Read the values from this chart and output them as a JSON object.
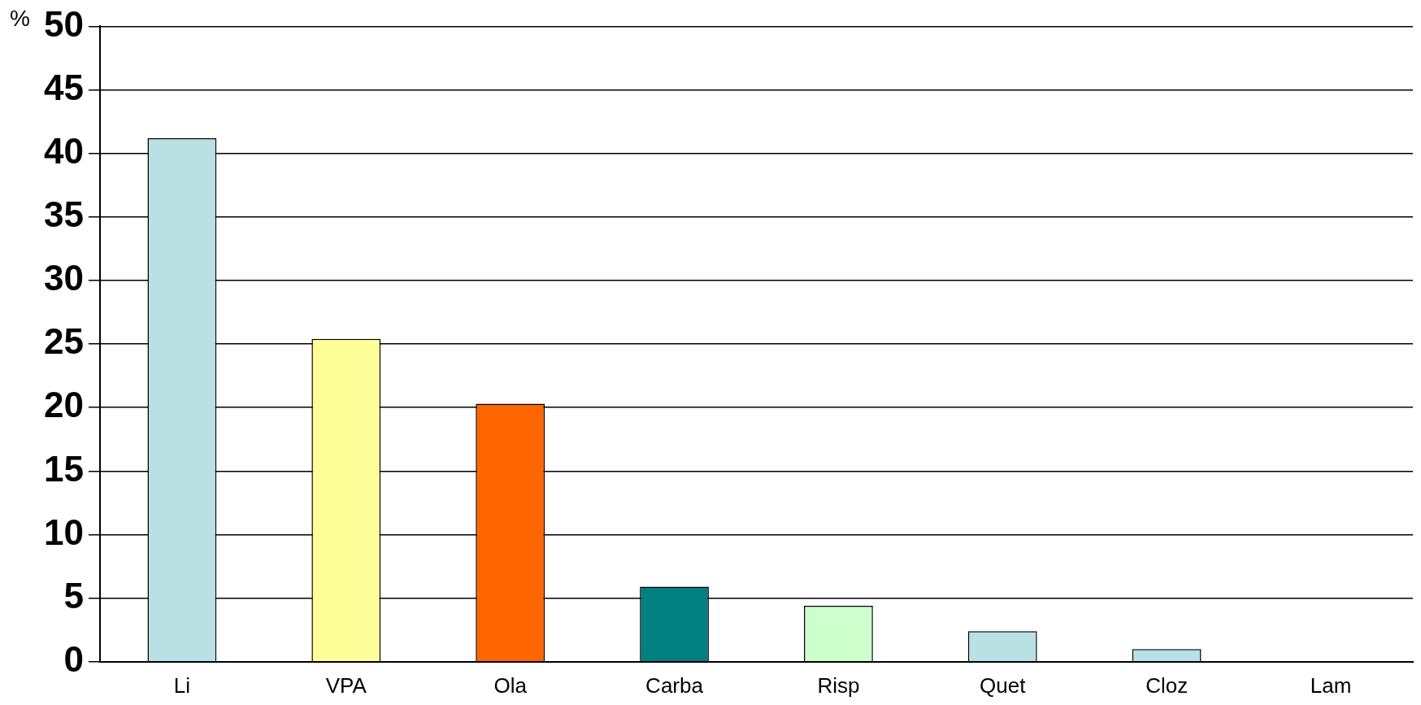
{
  "chart_data": {
    "type": "bar",
    "ylabel": "%",
    "categories": [
      "Li",
      "VPA",
      "Ola",
      "Carba",
      "Risp",
      "Quet",
      "Cloz",
      "Lam"
    ],
    "values": [
      41.2,
      25.4,
      20.3,
      5.9,
      4.4,
      2.4,
      1.0,
      0
    ],
    "colors": [
      "#b9e0e3",
      "#ffff99",
      "#ff6600",
      "#008080",
      "#ccffcc",
      "#b9e0e3",
      "#b9e0e3",
      "#8fa9ad"
    ],
    "ylim": [
      0,
      50
    ],
    "yticks": [
      0,
      5,
      10,
      15,
      20,
      25,
      30,
      35,
      40,
      45,
      50
    ],
    "grid": "y",
    "legend": false
  }
}
